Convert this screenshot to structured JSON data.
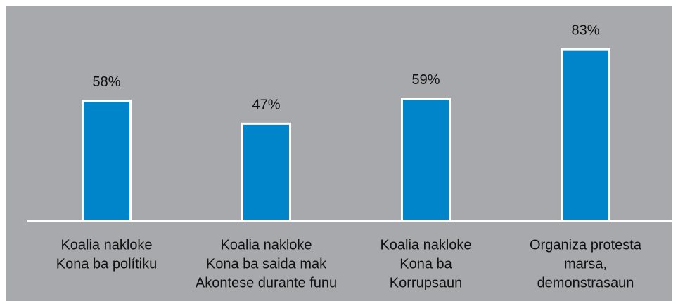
{
  "chart_data": {
    "type": "bar",
    "categories": [
      [
        "Koalia nakloke",
        "Kona ba polítiku"
      ],
      [
        "Koalia nakloke",
        "Kona ba saida mak",
        "Akontese durante funu"
      ],
      [
        "Koalia nakloke",
        "Kona ba",
        "Korrupsaun"
      ],
      [
        "Organiza protesta",
        "marsa,",
        "demonstrasaun"
      ]
    ],
    "values": [
      58,
      47,
      59,
      83
    ],
    "value_labels": [
      "58%",
      "47%",
      "59%",
      "83%"
    ],
    "color": "#0085ca",
    "ylim": [
      0,
      100
    ]
  }
}
